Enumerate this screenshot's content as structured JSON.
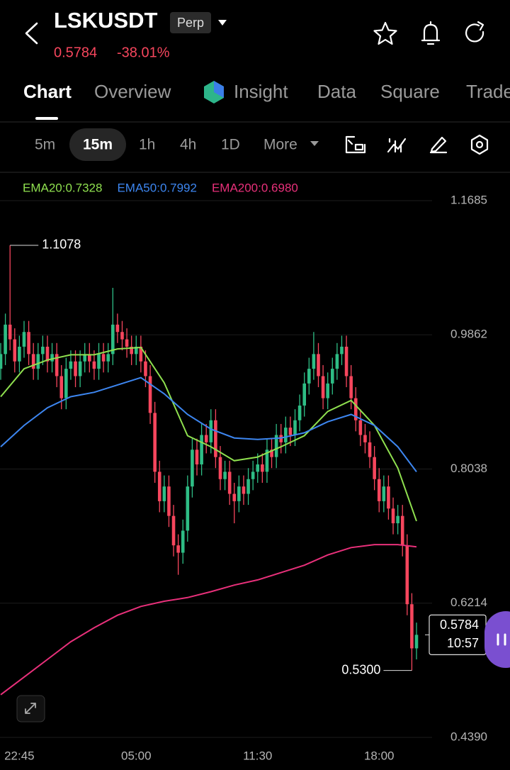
{
  "header": {
    "symbol": "LSKUSDT",
    "badge": "Perp",
    "price": "0.5784",
    "change": "-38.01%"
  },
  "tabs": [
    "Chart",
    "Overview",
    "Insight",
    "Data",
    "Square",
    "Trade"
  ],
  "intervals": [
    "5m",
    "15m",
    "1h",
    "4h",
    "1D",
    "More"
  ],
  "chart_data": {
    "type": "candlestick",
    "x": [
      0,
      1,
      2,
      3,
      4,
      5,
      6,
      7,
      8,
      9,
      10,
      11,
      12,
      13,
      14,
      15,
      16,
      17,
      18,
      19,
      20,
      21,
      22,
      23,
      24,
      25,
      26,
      27,
      28,
      29,
      30,
      31,
      32,
      33,
      34,
      35,
      36,
      37,
      38,
      39,
      40,
      41,
      42,
      43,
      44,
      45,
      46,
      47,
      48,
      49,
      50,
      51,
      52,
      53,
      54,
      55,
      56,
      57,
      58,
      59,
      60,
      61,
      62,
      63,
      64,
      65,
      66,
      67,
      68,
      69,
      70,
      71,
      72,
      73,
      74,
      75,
      76,
      77,
      78,
      79,
      80,
      81,
      82,
      83,
      84,
      85,
      86,
      87,
      88,
      89
    ],
    "open": [
      0.94,
      0.96,
      1.0,
      0.98,
      0.95,
      0.97,
      0.99,
      0.96,
      0.94,
      0.96,
      0.97,
      0.95,
      0.96,
      0.93,
      0.9,
      0.94,
      0.95,
      0.93,
      0.95,
      0.96,
      0.95,
      0.94,
      0.96,
      0.95,
      0.96,
      1.0,
      0.99,
      0.98,
      0.97,
      0.96,
      0.97,
      0.95,
      0.93,
      0.88,
      0.8,
      0.76,
      0.78,
      0.74,
      0.7,
      0.69,
      0.72,
      0.78,
      0.83,
      0.81,
      0.85,
      0.84,
      0.87,
      0.82,
      0.79,
      0.8,
      0.77,
      0.76,
      0.78,
      0.77,
      0.79,
      0.8,
      0.81,
      0.8,
      0.83,
      0.82,
      0.85,
      0.84,
      0.86,
      0.85,
      0.87,
      0.89,
      0.92,
      0.94,
      0.96,
      0.93,
      0.9,
      0.92,
      0.94,
      0.96,
      0.97,
      0.93,
      0.9,
      0.87,
      0.85,
      0.84,
      0.82,
      0.79,
      0.76,
      0.78,
      0.75,
      0.73,
      0.74,
      0.7,
      0.62,
      0.56
    ],
    "high": [
      0.975,
      1.015,
      1.1078,
      0.995,
      0.985,
      1.005,
      1.005,
      0.975,
      0.975,
      0.985,
      0.985,
      0.975,
      0.975,
      0.945,
      0.955,
      0.965,
      0.965,
      0.965,
      0.975,
      0.975,
      0.965,
      0.975,
      0.975,
      0.975,
      1.05,
      1.015,
      1.005,
      0.995,
      0.985,
      0.985,
      0.985,
      0.965,
      0.945,
      0.895,
      0.815,
      0.795,
      0.795,
      0.755,
      0.715,
      0.735,
      0.795,
      0.845,
      0.845,
      0.865,
      0.865,
      0.885,
      0.885,
      0.835,
      0.815,
      0.815,
      0.785,
      0.795,
      0.795,
      0.805,
      0.815,
      0.825,
      0.825,
      0.845,
      0.845,
      0.865,
      0.865,
      0.875,
      0.875,
      0.885,
      0.905,
      0.935,
      0.955,
      0.99,
      0.975,
      0.945,
      0.935,
      0.955,
      0.975,
      0.985,
      0.985,
      0.945,
      0.915,
      0.885,
      0.865,
      0.855,
      0.835,
      0.805,
      0.795,
      0.795,
      0.765,
      0.755,
      0.755,
      0.715,
      0.635,
      0.595
    ],
    "low": [
      0.925,
      0.945,
      0.965,
      0.935,
      0.935,
      0.955,
      0.945,
      0.925,
      0.925,
      0.945,
      0.935,
      0.935,
      0.915,
      0.885,
      0.885,
      0.925,
      0.915,
      0.915,
      0.935,
      0.935,
      0.925,
      0.925,
      0.935,
      0.935,
      0.945,
      0.975,
      0.965,
      0.955,
      0.945,
      0.945,
      0.935,
      0.915,
      0.865,
      0.785,
      0.745,
      0.745,
      0.725,
      0.685,
      0.66,
      0.675,
      0.705,
      0.765,
      0.795,
      0.795,
      0.825,
      0.825,
      0.805,
      0.775,
      0.775,
      0.755,
      0.73,
      0.745,
      0.755,
      0.755,
      0.775,
      0.785,
      0.785,
      0.785,
      0.805,
      0.805,
      0.825,
      0.825,
      0.835,
      0.835,
      0.855,
      0.875,
      0.905,
      0.925,
      0.915,
      0.885,
      0.885,
      0.905,
      0.925,
      0.945,
      0.915,
      0.885,
      0.855,
      0.835,
      0.825,
      0.805,
      0.775,
      0.745,
      0.745,
      0.735,
      0.715,
      0.715,
      0.685,
      0.605,
      0.53,
      0.545
    ],
    "close": [
      0.96,
      1.0,
      0.98,
      0.95,
      0.97,
      0.99,
      0.96,
      0.94,
      0.96,
      0.97,
      0.95,
      0.96,
      0.93,
      0.9,
      0.94,
      0.95,
      0.93,
      0.95,
      0.96,
      0.95,
      0.94,
      0.96,
      0.95,
      0.96,
      1.0,
      0.99,
      0.98,
      0.97,
      0.96,
      0.97,
      0.95,
      0.93,
      0.88,
      0.8,
      0.76,
      0.78,
      0.74,
      0.7,
      0.69,
      0.72,
      0.78,
      0.83,
      0.81,
      0.85,
      0.84,
      0.87,
      0.82,
      0.79,
      0.8,
      0.77,
      0.76,
      0.78,
      0.77,
      0.79,
      0.8,
      0.81,
      0.8,
      0.83,
      0.82,
      0.85,
      0.84,
      0.86,
      0.85,
      0.87,
      0.89,
      0.92,
      0.94,
      0.96,
      0.93,
      0.9,
      0.92,
      0.94,
      0.96,
      0.97,
      0.93,
      0.9,
      0.87,
      0.85,
      0.84,
      0.82,
      0.79,
      0.76,
      0.78,
      0.75,
      0.73,
      0.74,
      0.7,
      0.62,
      0.56,
      0.5784
    ],
    "up_color": "#2ebd85",
    "down_color": "#f6465d",
    "series": [
      {
        "name": "EMA20:0.7328",
        "color": "#8fe04f",
        "x": [
          0,
          5,
          10,
          15,
          20,
          25,
          30,
          35,
          40,
          45,
          50,
          55,
          60,
          65,
          70,
          75,
          80,
          85,
          89
        ],
        "values": [
          0.902,
          0.94,
          0.952,
          0.959,
          0.959,
          0.967,
          0.969,
          0.921,
          0.849,
          0.834,
          0.815,
          0.82,
          0.834,
          0.849,
          0.882,
          0.897,
          0.863,
          0.805,
          0.733
        ]
      },
      {
        "name": "EMA50:0.7992",
        "color": "#3d86f0",
        "x": [
          0,
          5,
          10,
          15,
          20,
          25,
          30,
          35,
          40,
          45,
          50,
          55,
          60,
          65,
          70,
          75,
          80,
          85,
          89
        ],
        "values": [
          0.834,
          0.863,
          0.887,
          0.902,
          0.908,
          0.918,
          0.928,
          0.906,
          0.878,
          0.858,
          0.846,
          0.844,
          0.846,
          0.853,
          0.868,
          0.878,
          0.863,
          0.834,
          0.8
        ]
      },
      {
        "name": "EMA200:0.6980",
        "color": "#e8307a",
        "x": [
          0,
          5,
          10,
          15,
          20,
          25,
          30,
          35,
          40,
          45,
          50,
          55,
          60,
          65,
          70,
          75,
          80,
          85,
          89
        ],
        "values": [
          0.497,
          0.521,
          0.545,
          0.569,
          0.588,
          0.605,
          0.617,
          0.624,
          0.629,
          0.637,
          0.646,
          0.653,
          0.663,
          0.673,
          0.687,
          0.697,
          0.701,
          0.701,
          0.698
        ]
      }
    ],
    "xlim": [
      0,
      89
    ],
    "xticks": [
      {
        "value": 4,
        "label": "22:45"
      },
      {
        "value": 29,
        "label": "05:00"
      },
      {
        "value": 55,
        "label": "11:30"
      },
      {
        "value": 81,
        "label": "18:00"
      }
    ],
    "ylim": [
      0.439,
      1.1685
    ],
    "yticks": [
      {
        "value": 1.1685,
        "label": "1.1685"
      },
      {
        "value": 0.9862,
        "label": "0.9862"
      },
      {
        "value": 0.8038,
        "label": "0.8038"
      },
      {
        "value": 0.6214,
        "label": "0.6214"
      },
      {
        "value": 0.439,
        "label": "0.4390"
      }
    ],
    "grid": true,
    "low_label": "0.5300",
    "countdown": "10:57"
  }
}
